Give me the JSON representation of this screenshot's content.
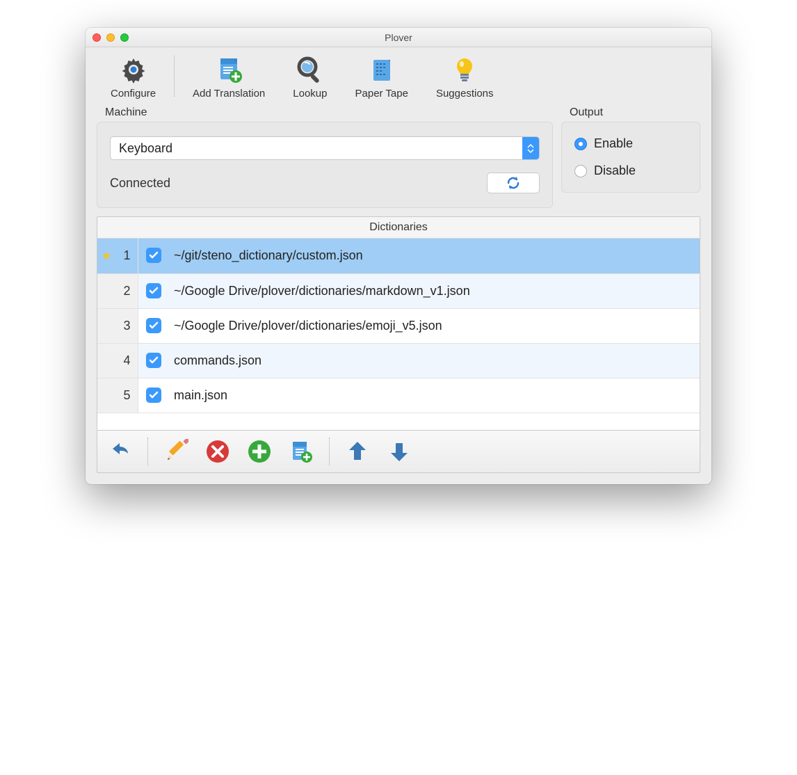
{
  "window": {
    "title": "Plover"
  },
  "colors": {
    "accent": "#3b99fc",
    "blue_icon": "#3b78b5",
    "green": "#37a93c",
    "red": "#d83a3a",
    "orange": "#f5a623",
    "yellow": "#f5c518",
    "row_selected": "#9fcdf5",
    "row_alt": "#f0f6fd",
    "window_bg": "#ececec"
  },
  "toolbar": [
    {
      "id": "configure",
      "label": "Configure",
      "icon": "gear"
    },
    {
      "id": "add-translation",
      "label": "Add Translation",
      "icon": "doc-plus"
    },
    {
      "id": "lookup",
      "label": "Lookup",
      "icon": "magnifier"
    },
    {
      "id": "paper-tape",
      "label": "Paper Tape",
      "icon": "paper-tape"
    },
    {
      "id": "suggestions",
      "label": "Suggestions",
      "icon": "lightbulb"
    }
  ],
  "machine": {
    "label": "Machine",
    "selected": "Keyboard",
    "status": "Connected"
  },
  "output": {
    "label": "Output",
    "options": [
      {
        "label": "Enable",
        "checked": true
      },
      {
        "label": "Disable",
        "checked": false
      }
    ]
  },
  "dictionaries": {
    "header": "Dictionaries",
    "rows": [
      {
        "num": "1",
        "starred": true,
        "checked": true,
        "path": "~/git/steno_dictionary/custom.json",
        "selected": true
      },
      {
        "num": "2",
        "starred": false,
        "checked": true,
        "path": "~/Google Drive/plover/dictionaries/markdown_v1.json",
        "selected": false
      },
      {
        "num": "3",
        "starred": false,
        "checked": true,
        "path": "~/Google Drive/plover/dictionaries/emoji_v5.json",
        "selected": false
      },
      {
        "num": "4",
        "starred": false,
        "checked": true,
        "path": "commands.json",
        "selected": false
      },
      {
        "num": "5",
        "starred": false,
        "checked": true,
        "path": "main.json",
        "selected": false
      }
    ]
  },
  "bottom_toolbar": {
    "buttons": [
      "undo",
      "edit",
      "delete",
      "add",
      "add-doc",
      "move-up",
      "move-down"
    ]
  }
}
